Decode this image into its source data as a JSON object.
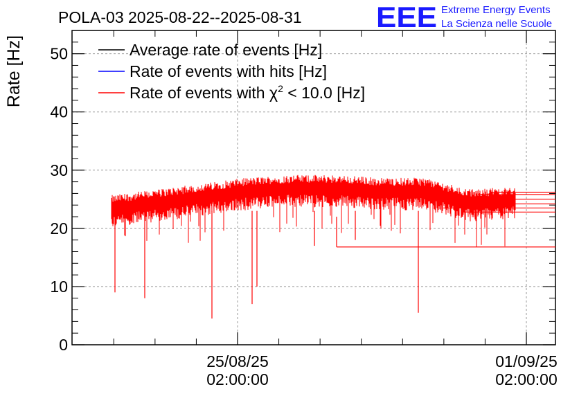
{
  "chart_data": {
    "type": "line",
    "title": "POLA-03 2025-08-22--2025-08-31",
    "ylabel": "Rate [Hz]",
    "xlabel": "",
    "ylim": [
      0,
      54
    ],
    "y_ticks": [
      0,
      10,
      20,
      30,
      40,
      50
    ],
    "x_ticks": [
      {
        "date": "25/08/25",
        "time": "02:00:00"
      },
      {
        "date": "01/09/25",
        "time": "02:00:00"
      }
    ],
    "grid": true,
    "legend_position": "top-left",
    "legend": [
      {
        "name": "Average rate of events [Hz]",
        "color": "#000000"
      },
      {
        "name": "Rate of events with hits [Hz]",
        "color": "#0000ff"
      },
      {
        "name": "Rate of events with χ² < 10.0 [Hz]",
        "color": "#ff0000",
        "prefix": "Rate of events with χ",
        "sup": "2",
        "suffix": " < 10.0 [Hz]"
      }
    ],
    "series": [
      {
        "name": "Rate of events with χ² < 10.0 [Hz]",
        "color": "#ff0000",
        "approx_baseline": [
          23.5,
          24.5,
          25.5,
          26.5,
          27,
          27,
          26.5,
          26.5,
          24.5,
          25
        ]
      }
    ],
    "dips": [
      9,
      8,
      4.5,
      7,
      10,
      5.5,
      17,
      18
    ]
  },
  "logo": {
    "mark": "EEE",
    "line1": "Extreme Energy Events",
    "line2": "La Scienza nelle Scuole",
    "color": "#1a1aff"
  }
}
